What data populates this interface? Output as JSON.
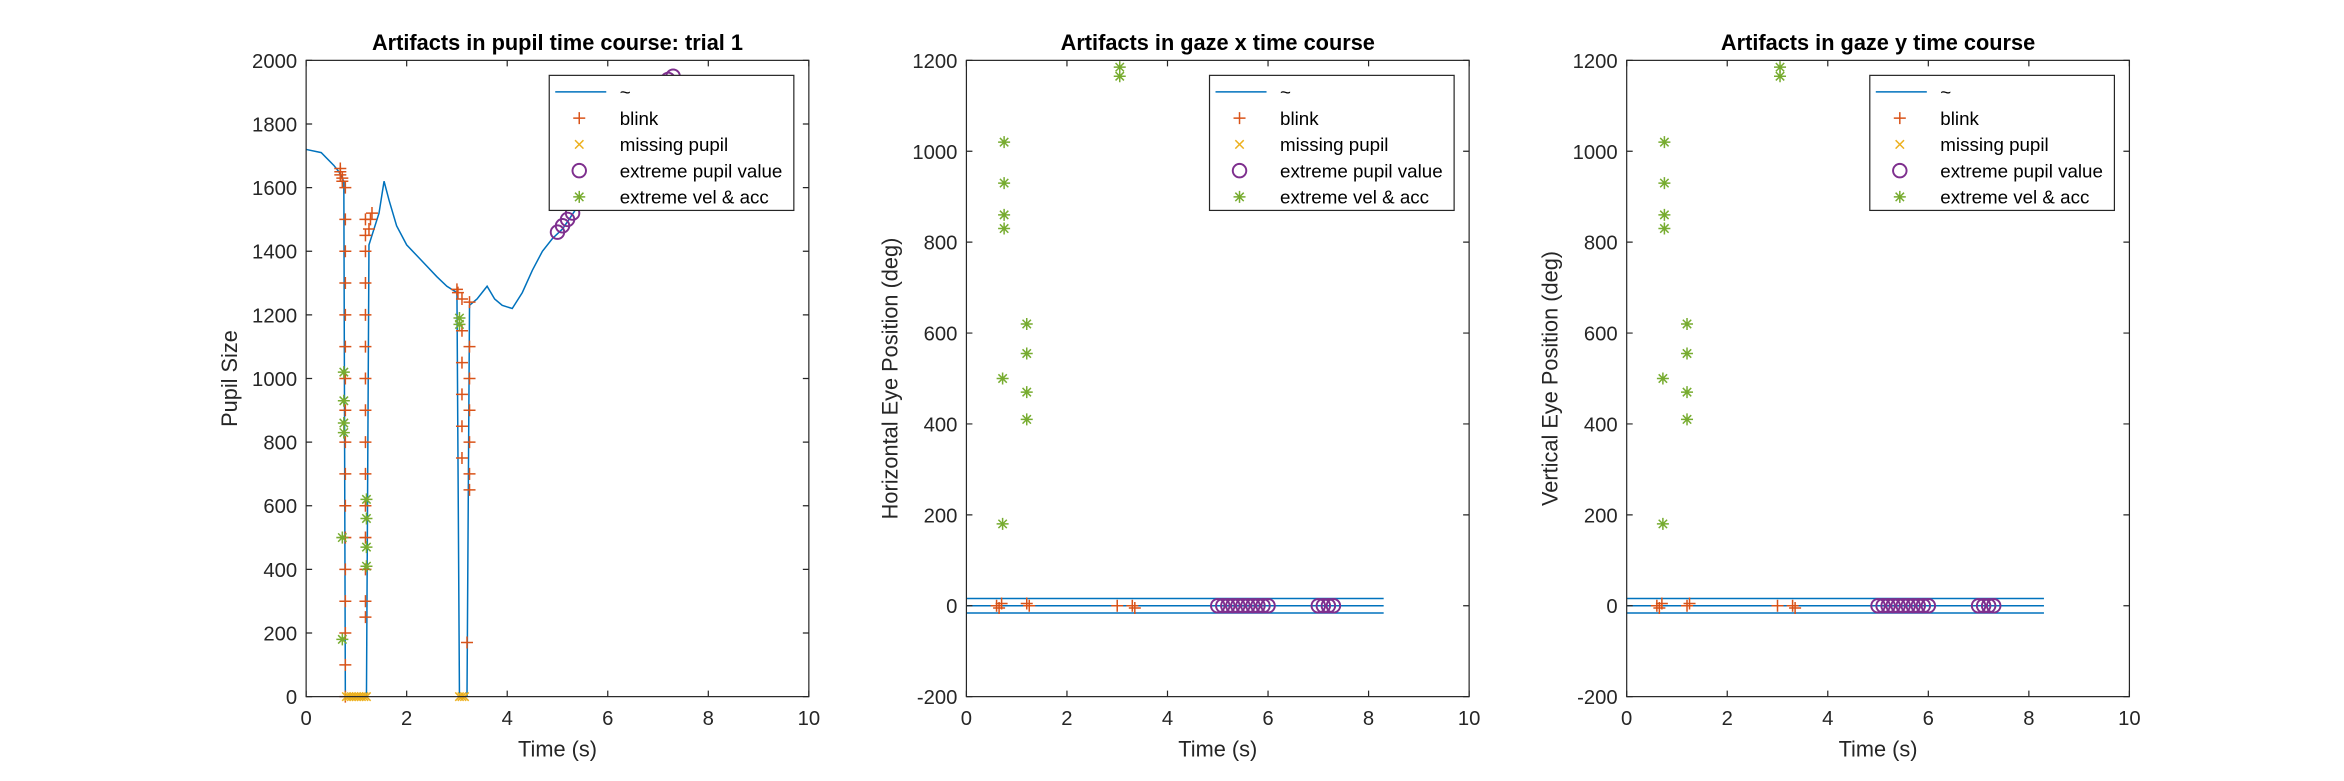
{
  "chart_data": [
    {
      "type": "line",
      "title": "Artifacts in pupil time course: trial 1",
      "xlabel": "Time (s)",
      "ylabel": "Pupil Size",
      "xlim": [
        0,
        10
      ],
      "xticks": [
        0,
        2,
        4,
        6,
        8,
        10
      ],
      "ylim": [
        0,
        2000
      ],
      "yticks": [
        0,
        200,
        400,
        600,
        800,
        1000,
        1200,
        1400,
        1600,
        1800,
        2000
      ],
      "legend": "northeast",
      "series": [
        {
          "name": "~",
          "color": "#0072BD",
          "marker": "none",
          "x": [
            0,
            0.3,
            0.55,
            0.65,
            0.75,
            0.78,
            1.2,
            1.25,
            1.45,
            1.55,
            1.65,
            1.8,
            2.0,
            2.3,
            2.6,
            2.8,
            3.0,
            3.05,
            3.2,
            3.25,
            3.4,
            3.6,
            3.75,
            3.9,
            4.1,
            4.3,
            4.5,
            4.7,
            4.9,
            5.1,
            5.4,
            5.8,
            6.2,
            6.6,
            7.0,
            7.3
          ],
          "values": [
            1720,
            1710,
            1670,
            1650,
            1620,
            0,
            0,
            1420,
            1520,
            1620,
            1560,
            1480,
            1420,
            1370,
            1320,
            1290,
            1270,
            0,
            0,
            1230,
            1250,
            1290,
            1250,
            1230,
            1220,
            1270,
            1340,
            1400,
            1440,
            1470,
            1540,
            1620,
            1700,
            1790,
            1870,
            1940
          ]
        },
        {
          "name": "blink",
          "color": "#D95319",
          "marker": "+",
          "x": [
            0.68,
            0.68,
            0.68,
            0.72,
            0.72,
            0.78,
            0.78,
            0.78,
            0.78,
            0.78,
            0.78,
            0.78,
            0.78,
            0.78,
            0.78,
            0.78,
            0.78,
            0.78,
            0.78,
            0.78,
            0.78,
            0.78,
            1.18,
            1.18,
            1.18,
            1.18,
            1.18,
            1.18,
            1.18,
            1.18,
            1.18,
            1.18,
            1.18,
            1.18,
            1.18,
            1.18,
            1.18,
            1.25,
            1.28,
            1.31,
            3.0,
            3.02,
            3.1,
            3.1,
            3.1,
            3.1,
            3.1,
            3.1,
            3.25,
            3.25,
            3.25,
            3.25,
            3.25,
            3.25,
            3.25,
            3.2
          ],
          "values": [
            1660,
            1650,
            1640,
            1630,
            1620,
            1600,
            1500,
            1400,
            1300,
            1200,
            1100,
            1000,
            900,
            800,
            700,
            600,
            500,
            400,
            300,
            200,
            100,
            0,
            1500,
            1450,
            1400,
            1300,
            1200,
            1100,
            1000,
            900,
            800,
            700,
            600,
            500,
            400,
            300,
            250,
            1470,
            1500,
            1520,
            1280,
            1270,
            1250,
            1150,
            1050,
            950,
            850,
            750,
            1240,
            1100,
            1000,
            900,
            800,
            700,
            650,
            170
          ]
        },
        {
          "name": "missing pupil",
          "color": "#EDB120",
          "marker": "x",
          "x": [
            0.8,
            0.85,
            0.9,
            0.95,
            1.0,
            1.05,
            1.1,
            1.15,
            1.2,
            3.05,
            3.1,
            3.15
          ],
          "values": [
            0,
            0,
            0,
            0,
            0,
            0,
            0,
            0,
            0,
            0,
            0,
            0
          ]
        },
        {
          "name": "extreme pupil value",
          "color": "#7E2F8E",
          "marker": "o",
          "x": [
            5.0,
            5.1,
            5.2,
            5.3,
            7.2,
            7.3
          ],
          "values": [
            1460,
            1480,
            1500,
            1520,
            1940,
            1950
          ]
        },
        {
          "name": "extreme vel & acc",
          "color": "#77AC30",
          "marker": "*",
          "x": [
            0.72,
            0.72,
            0.75,
            0.75,
            0.75,
            0.75,
            1.2,
            1.2,
            1.2,
            1.2,
            3.05,
            3.05
          ],
          "values": [
            180,
            500,
            830,
            860,
            930,
            1020,
            410,
            470,
            560,
            620,
            1170,
            1190
          ]
        }
      ]
    },
    {
      "type": "line",
      "title": "Artifacts in gaze x time course",
      "xlabel": "Time (s)",
      "ylabel": "Horizontal Eye Position (deg)",
      "xlim": [
        0,
        10
      ],
      "xticks": [
        0,
        2,
        4,
        6,
        8,
        10
      ],
      "ylim": [
        -200,
        1200
      ],
      "yticks": [
        -200,
        0,
        200,
        400,
        600,
        800,
        1000,
        1200
      ],
      "legend": "northeast",
      "series": [
        {
          "name": "~",
          "color": "#0072BD",
          "marker": "none",
          "x": [
            0,
            8.3,
            null,
            0,
            8.3,
            null,
            0,
            8.3
          ],
          "values": [
            16,
            16,
            null,
            0,
            0,
            null,
            -16,
            -16
          ]
        },
        {
          "name": "blink",
          "color": "#D95319",
          "marker": "+",
          "x": [
            0.6,
            0.65,
            0.7,
            1.2,
            1.25,
            3.0,
            3.3,
            3.35
          ],
          "values": [
            0,
            -5,
            5,
            5,
            0,
            0,
            0,
            -5
          ]
        },
        {
          "name": "missing pupil",
          "color": "#EDB120",
          "marker": "x",
          "x": [],
          "values": []
        },
        {
          "name": "extreme pupil value",
          "color": "#7E2F8E",
          "marker": "o",
          "x": [
            5.0,
            5.1,
            5.2,
            5.3,
            5.4,
            5.5,
            5.6,
            5.7,
            5.8,
            5.9,
            6.0,
            7.0,
            7.1,
            7.2,
            7.3
          ],
          "values": [
            0,
            0,
            0,
            0,
            0,
            0,
            0,
            0,
            0,
            0,
            0,
            0,
            0,
            0,
            0
          ]
        },
        {
          "name": "extreme vel & acc",
          "color": "#77AC30",
          "marker": "*",
          "x": [
            0.72,
            0.72,
            0.75,
            0.75,
            0.75,
            0.75,
            1.2,
            1.2,
            1.2,
            1.2,
            3.05,
            3.05
          ],
          "values": [
            180,
            500,
            830,
            860,
            930,
            1020,
            410,
            470,
            555,
            620,
            1165,
            1185
          ]
        }
      ]
    },
    {
      "type": "line",
      "title": "Artifacts in gaze y time course",
      "xlabel": "Time (s)",
      "ylabel": "Vertical Eye Position (deg)",
      "xlim": [
        0,
        10
      ],
      "xticks": [
        0,
        2,
        4,
        6,
        8,
        10
      ],
      "ylim": [
        -200,
        1200
      ],
      "yticks": [
        -200,
        0,
        200,
        400,
        600,
        800,
        1000,
        1200
      ],
      "legend": "northeast",
      "series": [
        {
          "name": "~",
          "color": "#0072BD",
          "marker": "none",
          "x": [
            0,
            8.3,
            null,
            0,
            8.3,
            null,
            0,
            8.3
          ],
          "values": [
            16,
            16,
            null,
            0,
            0,
            null,
            -16,
            -16
          ]
        },
        {
          "name": "blink",
          "color": "#D95319",
          "marker": "+",
          "x": [
            0.6,
            0.65,
            0.7,
            1.2,
            1.25,
            3.0,
            3.3,
            3.35
          ],
          "values": [
            0,
            -5,
            5,
            0,
            5,
            0,
            0,
            -5
          ]
        },
        {
          "name": "missing pupil",
          "color": "#EDB120",
          "marker": "x",
          "x": [],
          "values": []
        },
        {
          "name": "extreme pupil value",
          "color": "#7E2F8E",
          "marker": "o",
          "x": [
            5.0,
            5.1,
            5.2,
            5.3,
            5.4,
            5.5,
            5.6,
            5.7,
            5.8,
            5.9,
            6.0,
            7.0,
            7.1,
            7.2,
            7.3
          ],
          "values": [
            0,
            0,
            0,
            0,
            0,
            0,
            0,
            0,
            0,
            0,
            0,
            0,
            0,
            0,
            0
          ]
        },
        {
          "name": "extreme vel & acc",
          "color": "#77AC30",
          "marker": "*",
          "x": [
            0.72,
            0.72,
            0.75,
            0.75,
            0.75,
            0.75,
            1.2,
            1.2,
            1.2,
            1.2,
            3.05,
            3.05
          ],
          "values": [
            180,
            500,
            830,
            860,
            930,
            1020,
            410,
            470,
            555,
            620,
            1165,
            1185
          ]
        }
      ]
    }
  ]
}
